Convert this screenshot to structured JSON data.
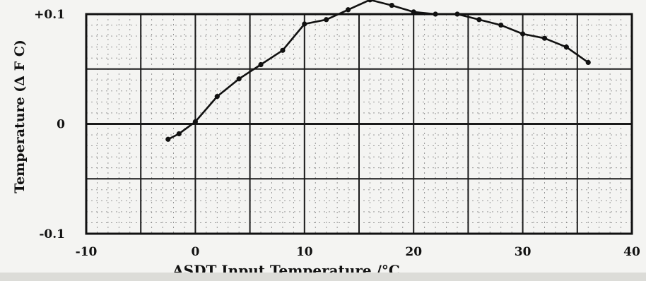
{
  "chart_data": {
    "type": "line",
    "title": "",
    "xlabel": "ASDT Input Temperature /°C",
    "ylabel": "Temperature (Δ F C)",
    "xlim": [
      -10,
      40
    ],
    "ylim": [
      -0.1,
      0.1
    ],
    "x_ticks": [
      "-10",
      "0",
      "10",
      "20",
      "30",
      "40"
    ],
    "y_ticks": [
      "+0.1",
      "0",
      "-0.1"
    ],
    "grid": true,
    "series": [
      {
        "name": "",
        "points": [
          [
            -2.5,
            -0.014
          ],
          [
            -1.5,
            -0.009
          ],
          [
            0,
            0.002
          ],
          [
            2,
            0.025
          ],
          [
            4,
            0.041
          ],
          [
            6,
            0.054
          ],
          [
            8,
            0.067
          ],
          [
            10,
            0.091
          ],
          [
            12,
            0.095
          ],
          [
            14,
            0.104
          ],
          [
            16,
            0.113
          ],
          [
            18,
            0.108
          ],
          [
            20,
            0.102
          ],
          [
            22,
            0.1
          ],
          [
            24,
            0.1
          ],
          [
            26,
            0.095
          ],
          [
            28,
            0.09
          ],
          [
            30,
            0.082
          ],
          [
            32,
            0.078
          ],
          [
            34,
            0.07
          ],
          [
            36,
            0.056
          ]
        ]
      }
    ]
  },
  "colors": {
    "ink": "#111111",
    "paper": "#f4f4f2",
    "grid_major": "#1a1a1a",
    "grid_minor": "#8a8a8a"
  }
}
